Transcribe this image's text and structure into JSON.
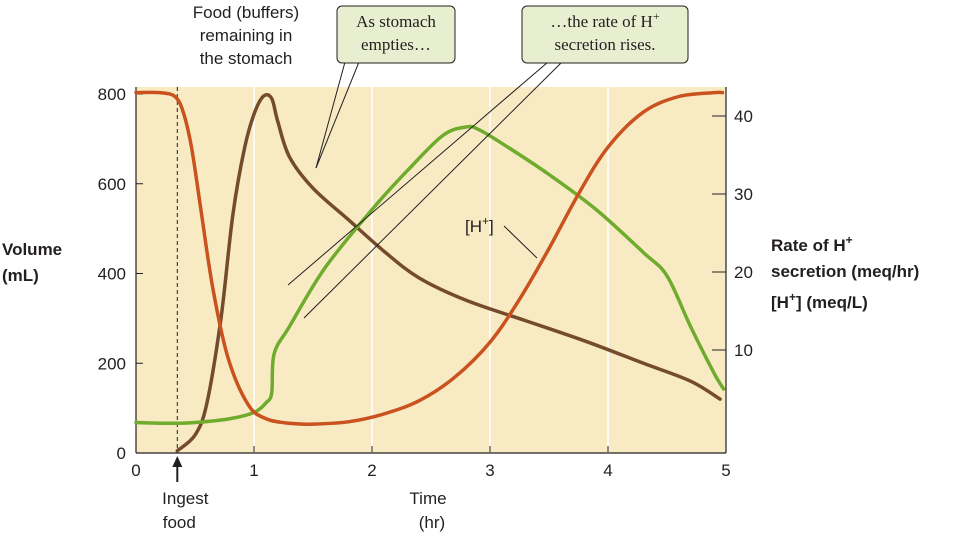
{
  "chart_data": {
    "type": "line",
    "x_ticks": [
      "0",
      "1",
      "2",
      "3",
      "4",
      "5"
    ],
    "xlim": [
      0,
      5
    ],
    "xlabel": [
      "Time",
      "(hr)"
    ],
    "y_left": {
      "label": [
        "Volume",
        "(mL)"
      ],
      "ticks": [
        "0",
        "200",
        "400",
        "600",
        "800"
      ],
      "ylim": [
        0,
        800
      ],
      "color": "#7a4a2a"
    },
    "y_right": {
      "label_rate": [
        "Rate of H",
        "+",
        "secretion (meq/hr)"
      ],
      "label_conc": [
        "[H",
        "+",
        "] (meq/L)"
      ],
      "ticks": [
        "10",
        "20",
        "30",
        "40"
      ],
      "ylim": [
        0,
        45
      ],
      "rate_color": "#4f9a2a",
      "conc_color": "#c8501e"
    },
    "series": [
      {
        "name": "Food (buffers) remaining in the stomach",
        "axis": "left",
        "color": "#754b2d",
        "points": [
          [
            0.35,
            5
          ],
          [
            0.5,
            40
          ],
          [
            0.6,
            110
          ],
          [
            0.72,
            300
          ],
          [
            0.82,
            530
          ],
          [
            0.92,
            680
          ],
          [
            1.0,
            755
          ],
          [
            1.08,
            795
          ],
          [
            1.15,
            790
          ],
          [
            1.2,
            740
          ],
          [
            1.3,
            660
          ],
          [
            1.5,
            590
          ],
          [
            1.8,
            520
          ],
          [
            2.1,
            450
          ],
          [
            2.4,
            390
          ],
          [
            2.8,
            340
          ],
          [
            3.3,
            295
          ],
          [
            3.8,
            250
          ],
          [
            4.3,
            200
          ],
          [
            4.7,
            160
          ],
          [
            4.95,
            120
          ]
        ]
      },
      {
        "name": "Rate of H+ secretion",
        "axis": "right",
        "color": "#6fac2e",
        "points": [
          [
            0.0,
            0.7
          ],
          [
            0.3,
            0.6
          ],
          [
            0.5,
            0.7
          ],
          [
            0.8,
            1.2
          ],
          [
            1.0,
            2.0
          ],
          [
            1.1,
            3.2
          ],
          [
            1.15,
            4.5
          ],
          [
            1.17,
            9.5
          ],
          [
            1.3,
            13.0
          ],
          [
            1.6,
            20.5
          ],
          [
            2.0,
            28.0
          ],
          [
            2.3,
            33.0
          ],
          [
            2.6,
            37.5
          ],
          [
            2.8,
            38.6
          ],
          [
            2.9,
            38.3
          ],
          [
            3.1,
            36.5
          ],
          [
            3.5,
            32.5
          ],
          [
            3.9,
            28.0
          ],
          [
            4.3,
            22.5
          ],
          [
            4.5,
            19.5
          ],
          [
            4.7,
            13.0
          ],
          [
            4.9,
            7.0
          ],
          [
            4.98,
            5.0
          ]
        ]
      },
      {
        "name": "[H+]",
        "axis": "right",
        "color": "#c9521f",
        "points": [
          [
            0.0,
            43.0
          ],
          [
            0.2,
            43.0
          ],
          [
            0.33,
            42.5
          ],
          [
            0.4,
            40.5
          ],
          [
            0.47,
            36.0
          ],
          [
            0.55,
            28.0
          ],
          [
            0.65,
            18.0
          ],
          [
            0.78,
            9.0
          ],
          [
            0.95,
            3.0
          ],
          [
            1.1,
            1.2
          ],
          [
            1.3,
            0.6
          ],
          [
            1.5,
            0.5
          ],
          [
            1.8,
            0.8
          ],
          [
            2.1,
            1.8
          ],
          [
            2.4,
            3.5
          ],
          [
            2.7,
            6.5
          ],
          [
            3.0,
            11.0
          ],
          [
            3.25,
            16.5
          ],
          [
            3.5,
            23.0
          ],
          [
            3.75,
            30.0
          ],
          [
            4.0,
            36.0
          ],
          [
            4.3,
            40.5
          ],
          [
            4.6,
            42.5
          ],
          [
            4.9,
            43.0
          ],
          [
            4.97,
            43.0
          ]
        ]
      }
    ],
    "annotations": {
      "food_label": [
        "Food (buffers)",
        "remaining in",
        "the stomach"
      ],
      "callout1": [
        "As stomach",
        "empties…"
      ],
      "callout2_line1_a": "…the rate of H",
      "callout2_line1_sup": "+",
      "callout2_line2": "secretion rises.",
      "hplus_a": "[H",
      "hplus_sup": "+",
      "hplus_b": "]",
      "ingest": [
        "Ingest",
        "food"
      ],
      "ingest_time": 0.35
    },
    "plot_bg": "#f8ebc4",
    "callout_bg": "#e8efd0"
  }
}
